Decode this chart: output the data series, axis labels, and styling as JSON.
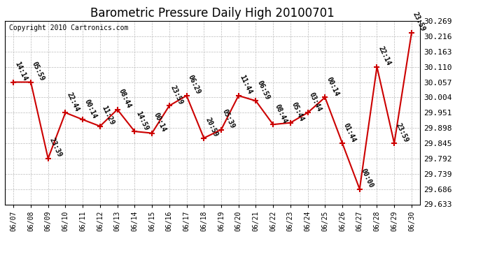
{
  "title": "Barometric Pressure Daily High 20100701",
  "copyright": "Copyright 2010 Cartronics.com",
  "x_labels": [
    "06/07",
    "06/08",
    "06/09",
    "06/10",
    "06/11",
    "06/12",
    "06/13",
    "06/14",
    "06/15",
    "06/16",
    "06/17",
    "06/18",
    "06/19",
    "06/20",
    "06/21",
    "06/22",
    "06/23",
    "06/24",
    "06/25",
    "06/26",
    "06/27",
    "06/28",
    "06/29",
    "06/30"
  ],
  "y_values": [
    30.057,
    30.057,
    29.792,
    29.951,
    29.927,
    29.904,
    29.962,
    29.886,
    29.88,
    29.975,
    30.01,
    29.863,
    29.892,
    30.01,
    29.992,
    29.91,
    29.916,
    29.951,
    30.004,
    29.845,
    29.686,
    30.11,
    29.845,
    30.228
  ],
  "time_labels": [
    "14:14",
    "05:59",
    "23:39",
    "22:44",
    "00:14",
    "11:29",
    "08:44",
    "14:59",
    "00:14",
    "23:59",
    "06:29",
    "20:59",
    "05:39",
    "11:44",
    "06:59",
    "08:44",
    "05:44",
    "03:44",
    "00:14",
    "01:44",
    "00:00",
    "22:14",
    "23:59",
    "23:59"
  ],
  "line_color": "#cc0000",
  "marker_color": "#cc0000",
  "background_color": "#ffffff",
  "grid_color": "#bbbbbb",
  "y_ticks": [
    29.633,
    29.686,
    29.739,
    29.792,
    29.845,
    29.898,
    29.951,
    30.004,
    30.057,
    30.11,
    30.163,
    30.216,
    30.269
  ],
  "title_fontsize": 12,
  "copyright_fontsize": 7,
  "annotation_fontsize": 7
}
